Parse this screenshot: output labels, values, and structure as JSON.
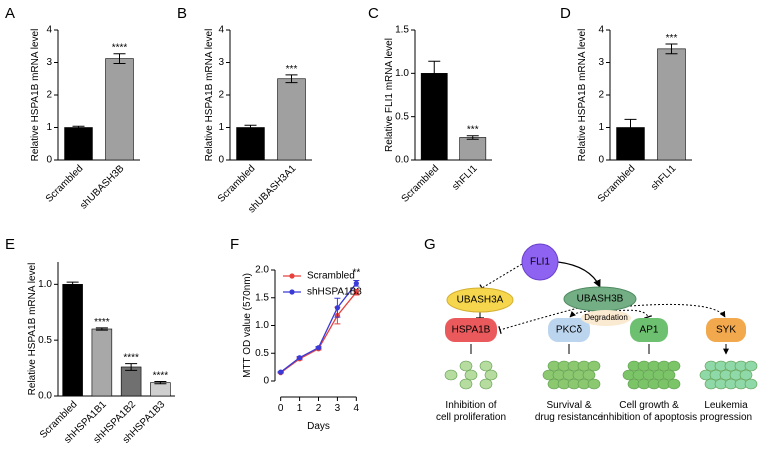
{
  "chart_data": [
    {
      "type": "bar",
      "label": "A",
      "y_label": "Relative HSPA1B mRNA level",
      "categories": [
        "Scrambled",
        "shUBASH3B"
      ],
      "values": [
        1.0,
        3.12
      ],
      "error": [
        0.04,
        0.15
      ],
      "colors": [
        "#000000",
        "#a0a0a0"
      ],
      "annotations": [
        null,
        "****"
      ],
      "ylim": [
        0,
        4
      ],
      "yticks": [
        0,
        1,
        2,
        3,
        4
      ]
    },
    {
      "type": "bar",
      "label": "B",
      "y_label": "Relative HSPA1B mRNA level",
      "categories": [
        "Scrambled",
        "shUBASH3A1"
      ],
      "values": [
        1.0,
        2.5
      ],
      "error": [
        0.07,
        0.12
      ],
      "colors": [
        "#000000",
        "#a0a0a0"
      ],
      "annotations": [
        null,
        "***"
      ],
      "ylim": [
        0,
        4
      ],
      "yticks": [
        0,
        1,
        2,
        3,
        4
      ]
    },
    {
      "type": "bar",
      "label": "C",
      "y_label": "Relative FLI1 mRNA level",
      "categories": [
        "Scrambled",
        "shFLI1"
      ],
      "values": [
        1.0,
        0.26
      ],
      "error": [
        0.14,
        0.02
      ],
      "colors": [
        "#000000",
        "#a0a0a0"
      ],
      "annotations": [
        null,
        "***"
      ],
      "ylim": [
        0,
        1.5
      ],
      "yticks": [
        {
          "value": 0,
          "label": "0.0"
        },
        0.5,
        {
          "value": 1,
          "label": "1.0"
        },
        1.5
      ]
    },
    {
      "type": "bar",
      "label": "D",
      "y_label": "Relative HSPA1B mRNA level",
      "categories": [
        "Scrambled",
        "shFLI1"
      ],
      "values": [
        1.0,
        3.42
      ],
      "error": [
        0.25,
        0.15
      ],
      "colors": [
        "#000000",
        "#a0a0a0"
      ],
      "annotations": [
        null,
        "***"
      ],
      "ylim": [
        0,
        4
      ],
      "yticks": [
        0,
        1,
        2,
        3,
        4
      ]
    },
    {
      "type": "bar",
      "label": "E",
      "y_label": "Relative HSPA1B mRNA level",
      "categories": [
        "Scrambled",
        "shHSPA1B1",
        "shHSPA1B2",
        "shHSPA1B3"
      ],
      "values": [
        1.0,
        0.6,
        0.26,
        0.12
      ],
      "error": [
        0.02,
        0.01,
        0.03,
        0.01
      ],
      "colors": [
        "#000000",
        "#a8a8a8",
        "#707070",
        "#cfcfcf"
      ],
      "annotations": [
        null,
        "****",
        "****",
        "****"
      ],
      "ylim": [
        0,
        1.2
      ],
      "yticks": [
        {
          "value": 0,
          "label": "0.0"
        },
        0.5,
        {
          "value": 1,
          "label": "1.0"
        }
      ]
    },
    {
      "type": "line",
      "label": "F",
      "x_label": "Days",
      "y_label": "MTT OD value (570nm)",
      "x": [
        0,
        1,
        2,
        3,
        4
      ],
      "series": [
        {
          "name": "Scrambled",
          "color": "#e8413c",
          "values": [
            0.15,
            0.4,
            0.58,
            1.18,
            1.6
          ],
          "error": [
            0.01,
            0.02,
            0.02,
            0.15,
            0.05
          ]
        },
        {
          "name": "shHSPA1B3",
          "color": "#3a3ad8",
          "values": [
            0.16,
            0.42,
            0.6,
            1.32,
            1.76
          ],
          "error": [
            0.01,
            0.02,
            0.02,
            0.17,
            0.05
          ]
        }
      ],
      "annotation": "**",
      "xlim": [
        -0.3,
        4.3
      ],
      "xticks": [
        0,
        1,
        2,
        3,
        4
      ],
      "ylim": [
        0,
        2
      ],
      "yticks": [
        0,
        0.5,
        {
          "value": 1,
          "label": "1.0"
        },
        1.5,
        {
          "value": 2,
          "label": "2.0"
        }
      ]
    }
  ],
  "diagram": {
    "label": "G",
    "nodes": {
      "fli1": "FLI1",
      "ubash3a": "UBASH3A",
      "ubash3b": "UBASH3B",
      "hspa1b": "HSPA1B",
      "pkc": "PKCδ",
      "degradation": "Degradation",
      "ap1": "AP1",
      "syk": "SYK"
    },
    "outcomes": [
      [
        "Inhibition of",
        "cell proliferation"
      ],
      [
        "Survival &",
        "drug resistance"
      ],
      [
        "Cell growth &",
        "inhibition of apoptosis"
      ],
      [
        "Leukemia",
        "progression"
      ]
    ]
  }
}
